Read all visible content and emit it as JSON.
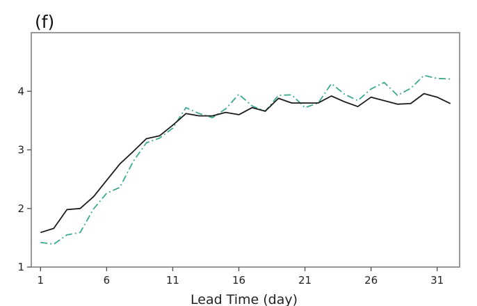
{
  "chart_data": {
    "type": "line",
    "panel_label": "(f)",
    "title": "",
    "xlabel": "Lead Time (day)",
    "ylabel": "",
    "xlim": [
      0.3,
      32.7
    ],
    "ylim": [
      1,
      5
    ],
    "x_ticks": [
      1,
      6,
      11,
      16,
      21,
      26,
      31
    ],
    "y_ticks": [
      1,
      2,
      3,
      4
    ],
    "grid": false,
    "legend": "none",
    "x": [
      1,
      2,
      3,
      4,
      5,
      6,
      7,
      8,
      9,
      10,
      11,
      12,
      13,
      14,
      15,
      16,
      17,
      18,
      19,
      20,
      21,
      22,
      23,
      24,
      25,
      26,
      27,
      28,
      29,
      30,
      31,
      32
    ],
    "series": [
      {
        "color": "#1a1a1a",
        "style": "solid",
        "values": [
          1.59,
          1.66,
          1.98,
          2.0,
          2.2,
          2.48,
          2.76,
          2.97,
          3.19,
          3.24,
          3.42,
          3.62,
          3.58,
          3.58,
          3.64,
          3.6,
          3.72,
          3.66,
          3.88,
          3.8,
          3.8,
          3.8,
          3.92,
          3.82,
          3.74,
          3.9,
          3.84,
          3.78,
          3.79,
          3.96,
          3.9,
          3.79
        ]
      },
      {
        "color": "#3aa88c",
        "style": "dashdot",
        "values": [
          1.42,
          1.39,
          1.55,
          1.59,
          1.99,
          2.26,
          2.36,
          2.8,
          3.12,
          3.2,
          3.37,
          3.72,
          3.62,
          3.55,
          3.7,
          3.95,
          3.75,
          3.66,
          3.93,
          3.94,
          3.72,
          3.8,
          4.13,
          3.95,
          3.84,
          4.04,
          4.15,
          3.93,
          4.05,
          4.27,
          4.22,
          4.21
        ]
      }
    ]
  }
}
